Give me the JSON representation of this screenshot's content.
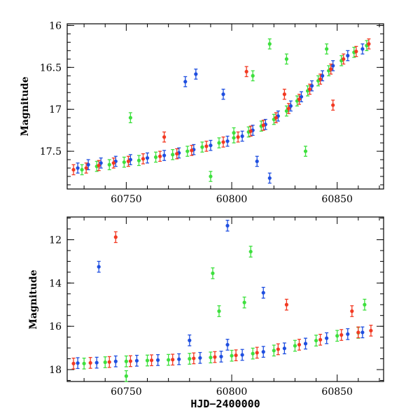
{
  "chart_data": [
    {
      "type": "scatter",
      "panel": "top",
      "title": "",
      "xlabel": "",
      "ylabel": "Magnitude",
      "xlim": [
        60722,
        60872
      ],
      "ylim": [
        17.95,
        15.98
      ],
      "y_inverted": true,
      "xticks": [
        "60750",
        "60800",
        "60850"
      ],
      "yticks": [
        "16",
        "16.5",
        "17",
        "17.5"
      ],
      "legend": "none",
      "grid": false,
      "series": [
        {
          "color": "#1f4fe0",
          "points": [
            [
              60727,
              17.7
            ],
            [
              60732,
              17.66
            ],
            [
              60738,
              17.64
            ],
            [
              60745,
              17.62
            ],
            [
              60752,
              17.6
            ],
            [
              60760,
              17.58
            ],
            [
              60768,
              17.55
            ],
            [
              60775,
              17.52
            ],
            [
              60782,
              17.48
            ],
            [
              60790,
              17.43
            ],
            [
              60798,
              17.38
            ],
            [
              60805,
              17.32
            ],
            [
              60810,
              17.25
            ],
            [
              60816,
              17.18
            ],
            [
              60822,
              17.08
            ],
            [
              60828,
              16.96
            ],
            [
              60833,
              16.85
            ],
            [
              60838,
              16.72
            ],
            [
              60843,
              16.6
            ],
            [
              60848,
              16.48
            ],
            [
              60855,
              16.36
            ],
            [
              60862,
              16.28
            ],
            [
              60778,
              16.67
            ],
            [
              60783,
              16.58
            ],
            [
              60796,
              16.82
            ],
            [
              60812,
              17.62
            ],
            [
              60818,
              17.82
            ]
          ]
        },
        {
          "color": "#3ee03e",
          "points": [
            [
              60729,
              17.72
            ],
            [
              60736,
              17.68
            ],
            [
              60742,
              17.66
            ],
            [
              60749,
              17.63
            ],
            [
              60756,
              17.61
            ],
            [
              60764,
              17.57
            ],
            [
              60772,
              17.54
            ],
            [
              60779,
              17.5
            ],
            [
              60786,
              17.45
            ],
            [
              60794,
              17.4
            ],
            [
              60801,
              17.34
            ],
            [
              60808,
              17.27
            ],
            [
              60814,
              17.2
            ],
            [
              60820,
              17.12
            ],
            [
              60826,
              17.02
            ],
            [
              60831,
              16.9
            ],
            [
              60836,
              16.78
            ],
            [
              60841,
              16.66
            ],
            [
              60846,
              16.54
            ],
            [
              60852,
              16.42
            ],
            [
              60858,
              16.32
            ],
            [
              60864,
              16.24
            ],
            [
              60752,
              17.1
            ],
            [
              60790,
              17.8
            ],
            [
              60801,
              17.28
            ],
            [
              60810,
              16.6
            ],
            [
              60818,
              16.22
            ],
            [
              60826,
              16.4
            ],
            [
              60835,
              17.5
            ],
            [
              60845,
              16.28
            ]
          ]
        },
        {
          "color": "#f23a23",
          "points": [
            [
              60725,
              17.72
            ],
            [
              60731,
              17.7
            ],
            [
              60737,
              17.67
            ],
            [
              60744,
              17.64
            ],
            [
              60751,
              17.62
            ],
            [
              60758,
              17.59
            ],
            [
              60766,
              17.56
            ],
            [
              60774,
              17.53
            ],
            [
              60781,
              17.49
            ],
            [
              60788,
              17.44
            ],
            [
              60796,
              17.39
            ],
            [
              60803,
              17.33
            ],
            [
              60809,
              17.26
            ],
            [
              60815,
              17.19
            ],
            [
              60821,
              17.1
            ],
            [
              60827,
              16.99
            ],
            [
              60832,
              16.88
            ],
            [
              60837,
              16.76
            ],
            [
              60842,
              16.64
            ],
            [
              60847,
              16.52
            ],
            [
              60853,
              16.4
            ],
            [
              60859,
              16.31
            ],
            [
              60865,
              16.22
            ],
            [
              60768,
              17.33
            ],
            [
              60807,
              16.55
            ],
            [
              60825,
              16.82
            ],
            [
              60848,
              16.95
            ]
          ]
        }
      ]
    },
    {
      "type": "scatter",
      "panel": "bottom",
      "title": "",
      "xlabel": "HJD−2400000",
      "ylabel": "Magnitude",
      "xlim": [
        60722,
        60872
      ],
      "ylim": [
        18.55,
        10.95
      ],
      "y_inverted": true,
      "xticks": [
        "60750",
        "60800",
        "60850"
      ],
      "yticks": [
        "12",
        "14",
        "16",
        "18"
      ],
      "legend": "none",
      "grid": false,
      "series": [
        {
          "color": "#1f4fe0",
          "points": [
            [
              60727,
              17.7
            ],
            [
              60736,
              17.68
            ],
            [
              60745,
              17.62
            ],
            [
              60755,
              17.59
            ],
            [
              60765,
              17.56
            ],
            [
              60775,
              17.52
            ],
            [
              60785,
              17.46
            ],
            [
              60795,
              17.4
            ],
            [
              60805,
              17.32
            ],
            [
              60815,
              17.18
            ],
            [
              60825,
              17.02
            ],
            [
              60835,
              16.8
            ],
            [
              60845,
              16.55
            ],
            [
              60855,
              16.36
            ],
            [
              60862,
              16.28
            ],
            [
              60737,
              13.25
            ],
            [
              60798,
              11.35
            ],
            [
              60815,
              14.45
            ],
            [
              60780,
              16.65
            ],
            [
              60798,
              16.85
            ]
          ]
        },
        {
          "color": "#3ee03e",
          "points": [
            [
              60730,
              17.72
            ],
            [
              60740,
              17.66
            ],
            [
              60750,
              17.62
            ],
            [
              60760,
              17.58
            ],
            [
              60770,
              17.55
            ],
            [
              60780,
              17.5
            ],
            [
              60790,
              17.44
            ],
            [
              60800,
              17.36
            ],
            [
              60810,
              17.26
            ],
            [
              60820,
              17.12
            ],
            [
              60830,
              16.9
            ],
            [
              60840,
              16.66
            ],
            [
              60850,
              16.44
            ],
            [
              60860,
              16.3
            ],
            [
              60791,
              13.55
            ],
            [
              60794,
              15.3
            ],
            [
              60806,
              14.9
            ],
            [
              60809,
              12.55
            ],
            [
              60863,
              15.0
            ],
            [
              60750,
              18.3
            ]
          ]
        },
        {
          "color": "#f23a23",
          "points": [
            [
              60725,
              17.72
            ],
            [
              60733,
              17.69
            ],
            [
              60742,
              17.65
            ],
            [
              60752,
              17.61
            ],
            [
              60762,
              17.57
            ],
            [
              60772,
              17.54
            ],
            [
              60782,
              17.48
            ],
            [
              60792,
              17.42
            ],
            [
              60802,
              17.34
            ],
            [
              60812,
              17.22
            ],
            [
              60822,
              17.06
            ],
            [
              60832,
              16.85
            ],
            [
              60842,
              16.62
            ],
            [
              60852,
              16.4
            ],
            [
              60860,
              16.28
            ],
            [
              60866,
              16.2
            ],
            [
              60745,
              11.88
            ],
            [
              60826,
              15.0
            ],
            [
              60857,
              15.3
            ]
          ]
        }
      ]
    }
  ]
}
